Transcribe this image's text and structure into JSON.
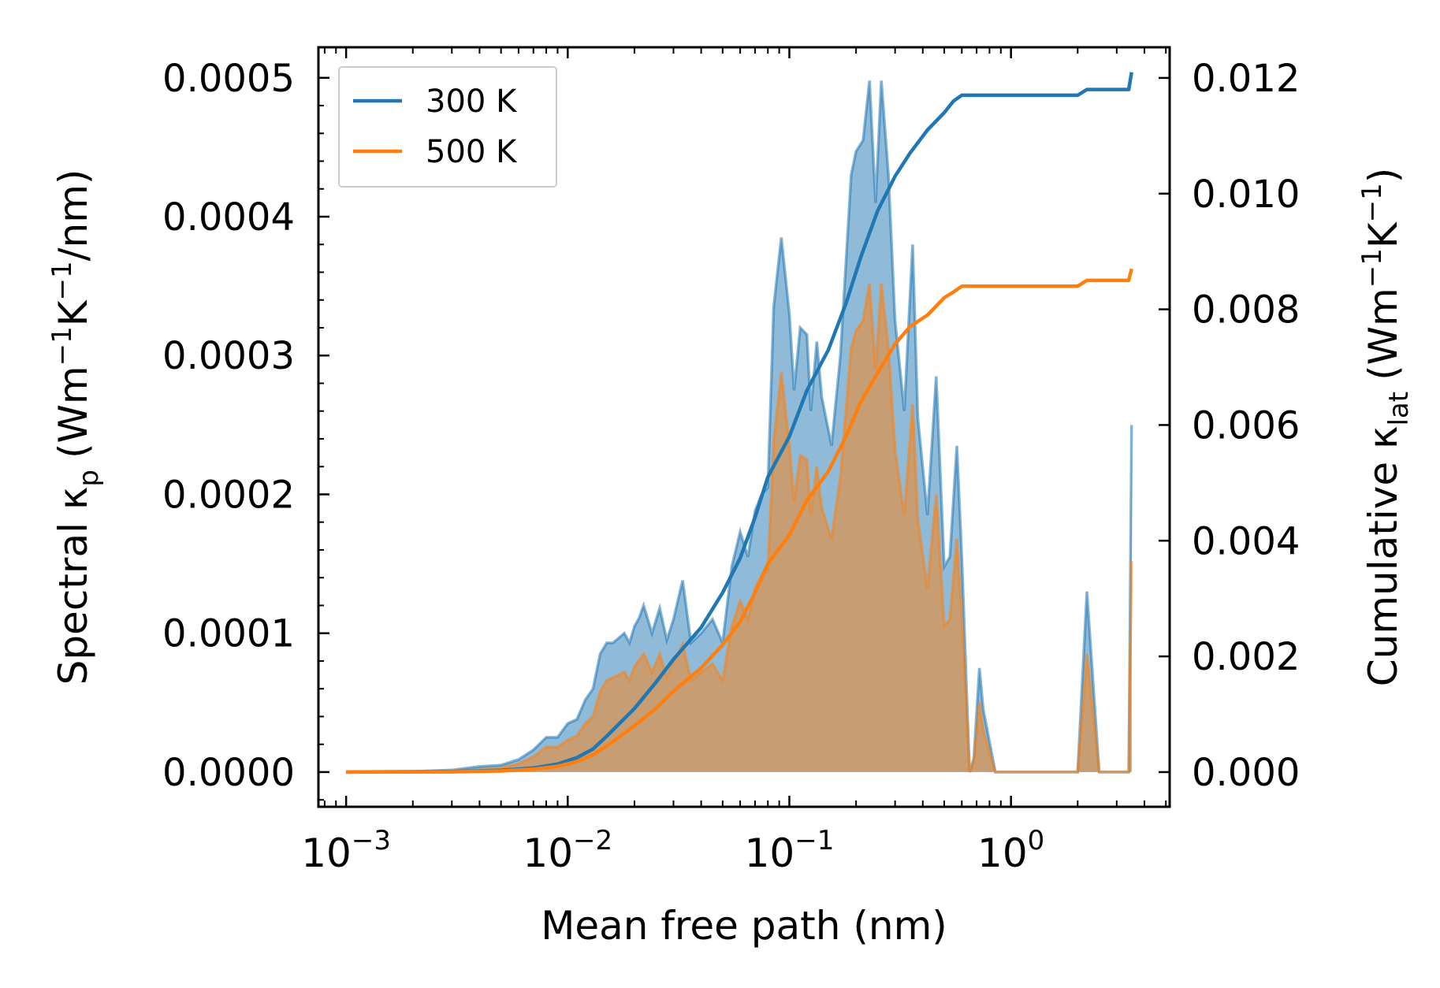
{
  "chart_data": {
    "type": "area",
    "xlabel": "Mean free path (nm)",
    "ylabel_left": "Spectral κ",
    "ylabel_left_sub": "p",
    "ylabel_left_units": "(Wm",
    "ylabel_right": "Cumulative κ",
    "ylabel_right_sub": "lat",
    "ylabel_right_units": "(Wm",
    "xscale": "log",
    "xlim": [
      0.00075,
      5.2
    ],
    "ylim_left": [
      -2.5e-05,
      0.000522
    ],
    "ylim_right": [
      -0.0006,
      0.01253
    ],
    "x_ticks": [
      {
        "value": 0.001,
        "base": "10",
        "exp": "−3"
      },
      {
        "value": 0.01,
        "base": "10",
        "exp": "−2"
      },
      {
        "value": 0.1,
        "base": "10",
        "exp": "−1"
      },
      {
        "value": 1,
        "base": "10",
        "exp": "0"
      }
    ],
    "y_ticks_left": [
      "0.0000",
      "0.0001",
      "0.0002",
      "0.0003",
      "0.0004",
      "0.0005"
    ],
    "y_ticks_left_values": [
      0,
      0.0001,
      0.0002,
      0.0003,
      0.0004,
      0.0005
    ],
    "y_ticks_right": [
      "0.000",
      "0.002",
      "0.004",
      "0.006",
      "0.008",
      "0.010",
      "0.012"
    ],
    "y_ticks_right_values": [
      0,
      0.002,
      0.004,
      0.006,
      0.008,
      0.01,
      0.012
    ],
    "legend": {
      "position": "top-left",
      "entries": [
        "300 K",
        "500 K"
      ]
    },
    "colors": {
      "series_300": "#1f77b4",
      "series_500": "#ff7f0e"
    },
    "spectral_series": [
      {
        "name": "300 K",
        "axis": "left",
        "points": [
          [
            0.001,
            0
          ],
          [
            0.002,
            4e-07
          ],
          [
            0.003,
            1.5e-06
          ],
          [
            0.004,
            4e-06
          ],
          [
            0.005,
            5e-06
          ],
          [
            0.006,
            9e-06
          ],
          [
            0.007,
            1.6e-05
          ],
          [
            0.008,
            2.5e-05
          ],
          [
            0.009,
            2.5e-05
          ],
          [
            0.01,
            3.5e-05
          ],
          [
            0.011,
            3.8e-05
          ],
          [
            0.012,
            5.2e-05
          ],
          [
            0.013,
            6e-05
          ],
          [
            0.014,
            8.5e-05
          ],
          [
            0.015,
            9.3e-05
          ],
          [
            0.016,
            9.3e-05
          ],
          [
            0.018,
            0.0001
          ],
          [
            0.019,
            9.3e-05
          ],
          [
            0.02,
            0.000105
          ],
          [
            0.021,
            0.000111
          ],
          [
            0.022,
            0.00012
          ],
          [
            0.024,
            0.0001
          ],
          [
            0.026,
            0.000118
          ],
          [
            0.028,
            9.5e-05
          ],
          [
            0.03,
            0.00011
          ],
          [
            0.033,
            0.000138
          ],
          [
            0.036,
            9.3e-05
          ],
          [
            0.04,
            0.0001
          ],
          [
            0.045,
            0.00011
          ],
          [
            0.05,
            9.3e-05
          ],
          [
            0.055,
            0.000148
          ],
          [
            0.06,
            0.000173
          ],
          [
            0.065,
            0.000155
          ],
          [
            0.07,
            0.000188
          ],
          [
            0.075,
            0.0002
          ],
          [
            0.08,
            0.000205
          ],
          [
            0.085,
            0.000335
          ],
          [
            0.092,
            0.000385
          ],
          [
            0.1,
            0.00033
          ],
          [
            0.105,
            0.000275
          ],
          [
            0.112,
            0.00032
          ],
          [
            0.12,
            0.000315
          ],
          [
            0.125,
            0.00026
          ],
          [
            0.133,
            0.00031
          ],
          [
            0.14,
            0.00027
          ],
          [
            0.155,
            0.000235
          ],
          [
            0.17,
            0.0003
          ],
          [
            0.19,
            0.00043
          ],
          [
            0.2,
            0.000447
          ],
          [
            0.215,
            0.000455
          ],
          [
            0.23,
            0.000498
          ],
          [
            0.245,
            0.00041
          ],
          [
            0.26,
            0.000498
          ],
          [
            0.28,
            0.00043
          ],
          [
            0.3,
            0.000325
          ],
          [
            0.33,
            0.00026
          ],
          [
            0.36,
            0.00038
          ],
          [
            0.38,
            0.000255
          ],
          [
            0.42,
            0.000185
          ],
          [
            0.46,
            0.000285
          ],
          [
            0.5,
            0.000148
          ],
          [
            0.53,
            0.000155
          ],
          [
            0.57,
            0.000235
          ],
          [
            0.6,
            0.000155
          ],
          [
            0.65,
            0
          ],
          [
            0.68,
            1e-05
          ],
          [
            0.72,
            7.5e-05
          ],
          [
            0.75,
            4.5e-05
          ],
          [
            0.85,
            0
          ],
          [
            1.0,
            0
          ],
          [
            1.5,
            0
          ],
          [
            2.0,
            0
          ],
          [
            2.2,
            0.00013
          ],
          [
            2.5,
            0
          ],
          [
            3.0,
            0
          ],
          [
            3.4,
            0
          ],
          [
            3.5,
            0.00025
          ]
        ]
      },
      {
        "name": "500 K",
        "axis": "left",
        "points": [
          [
            0.001,
            0
          ],
          [
            0.002,
            2e-07
          ],
          [
            0.003,
            8e-07
          ],
          [
            0.004,
            2e-06
          ],
          [
            0.005,
            3e-06
          ],
          [
            0.006,
            6e-06
          ],
          [
            0.007,
            1.1e-05
          ],
          [
            0.008,
            1.8e-05
          ],
          [
            0.009,
            1.8e-05
          ],
          [
            0.01,
            2.3e-05
          ],
          [
            0.011,
            2.6e-05
          ],
          [
            0.012,
            3.5e-05
          ],
          [
            0.013,
            4e-05
          ],
          [
            0.014,
            5.8e-05
          ],
          [
            0.015,
            6.6e-05
          ],
          [
            0.016,
            6.8e-05
          ],
          [
            0.018,
            7.2e-05
          ],
          [
            0.019,
            6.6e-05
          ],
          [
            0.02,
            7.6e-05
          ],
          [
            0.022,
            8.5e-05
          ],
          [
            0.024,
            7.2e-05
          ],
          [
            0.026,
            8.5e-05
          ],
          [
            0.028,
            6.8e-05
          ],
          [
            0.03,
            8e-05
          ],
          [
            0.033,
            9.2e-05
          ],
          [
            0.036,
            6.6e-05
          ],
          [
            0.04,
            7.2e-05
          ],
          [
            0.045,
            7.8e-05
          ],
          [
            0.05,
            6.6e-05
          ],
          [
            0.055,
            0.000105
          ],
          [
            0.06,
            0.000123
          ],
          [
            0.065,
            0.00011
          ],
          [
            0.07,
            0.000132
          ],
          [
            0.075,
            0.000142
          ],
          [
            0.08,
            0.000145
          ],
          [
            0.085,
            0.000238
          ],
          [
            0.092,
            0.000288
          ],
          [
            0.1,
            0.000235
          ],
          [
            0.105,
            0.000195
          ],
          [
            0.112,
            0.000228
          ],
          [
            0.12,
            0.000225
          ],
          [
            0.125,
            0.000185
          ],
          [
            0.133,
            0.00022
          ],
          [
            0.14,
            0.00019
          ],
          [
            0.155,
            0.000168
          ],
          [
            0.17,
            0.000213
          ],
          [
            0.19,
            0.000305
          ],
          [
            0.2,
            0.000318
          ],
          [
            0.215,
            0.000325
          ],
          [
            0.23,
            0.000352
          ],
          [
            0.245,
            0.00029
          ],
          [
            0.26,
            0.000352
          ],
          [
            0.28,
            0.000305
          ],
          [
            0.3,
            0.000232
          ],
          [
            0.33,
            0.000185
          ],
          [
            0.36,
            0.000265
          ],
          [
            0.38,
            0.000182
          ],
          [
            0.42,
            0.000132
          ],
          [
            0.46,
            0.0002
          ],
          [
            0.5,
            0.000105
          ],
          [
            0.53,
            0.00011
          ],
          [
            0.57,
            0.000168
          ],
          [
            0.6,
            0.000112
          ],
          [
            0.65,
            0
          ],
          [
            0.68,
            7e-06
          ],
          [
            0.72,
            5e-05
          ],
          [
            0.75,
            3e-05
          ],
          [
            0.85,
            0
          ],
          [
            1.0,
            0
          ],
          [
            1.5,
            0
          ],
          [
            2.0,
            0
          ],
          [
            2.2,
            8.5e-05
          ],
          [
            2.5,
            0
          ],
          [
            3.0,
            0
          ],
          [
            3.4,
            0
          ],
          [
            3.5,
            0.000152
          ]
        ]
      }
    ],
    "cumulative_series": [
      {
        "name": "300 K",
        "axis": "right",
        "points": [
          [
            0.001,
            0
          ],
          [
            0.003,
            1e-05
          ],
          [
            0.005,
            3e-05
          ],
          [
            0.007,
            7e-05
          ],
          [
            0.009,
            0.00014
          ],
          [
            0.011,
            0.00025
          ],
          [
            0.013,
            0.0004
          ],
          [
            0.015,
            0.00062
          ],
          [
            0.02,
            0.0011
          ],
          [
            0.025,
            0.00155
          ],
          [
            0.03,
            0.00195
          ],
          [
            0.04,
            0.0025
          ],
          [
            0.05,
            0.0031
          ],
          [
            0.06,
            0.0037
          ],
          [
            0.07,
            0.0044
          ],
          [
            0.08,
            0.0051
          ],
          [
            0.1,
            0.0058
          ],
          [
            0.12,
            0.0066
          ],
          [
            0.15,
            0.0073
          ],
          [
            0.18,
            0.0081
          ],
          [
            0.21,
            0.0089
          ],
          [
            0.25,
            0.0097
          ],
          [
            0.3,
            0.0103
          ],
          [
            0.35,
            0.0107
          ],
          [
            0.42,
            0.0111
          ],
          [
            0.5,
            0.0114
          ],
          [
            0.55,
            0.0116
          ],
          [
            0.6,
            0.0117
          ],
          [
            0.7,
            0.0117
          ],
          [
            0.8,
            0.0117
          ],
          [
            1.0,
            0.0117
          ],
          [
            2.0,
            0.0117
          ],
          [
            2.2,
            0.0118
          ],
          [
            3.4,
            0.0118
          ],
          [
            3.5,
            0.0121
          ]
        ]
      },
      {
        "name": "500 K",
        "axis": "right",
        "points": [
          [
            0.001,
            0
          ],
          [
            0.003,
            5e-06
          ],
          [
            0.005,
            2e-05
          ],
          [
            0.007,
            5e-05
          ],
          [
            0.009,
            0.0001
          ],
          [
            0.011,
            0.00018
          ],
          [
            0.013,
            0.0003
          ],
          [
            0.015,
            0.00045
          ],
          [
            0.02,
            0.0008
          ],
          [
            0.025,
            0.0011
          ],
          [
            0.03,
            0.0014
          ],
          [
            0.04,
            0.0018
          ],
          [
            0.05,
            0.0022
          ],
          [
            0.06,
            0.0026
          ],
          [
            0.07,
            0.0031
          ],
          [
            0.08,
            0.0036
          ],
          [
            0.1,
            0.0041
          ],
          [
            0.12,
            0.0047
          ],
          [
            0.15,
            0.0052
          ],
          [
            0.18,
            0.0058
          ],
          [
            0.21,
            0.0064
          ],
          [
            0.25,
            0.0069
          ],
          [
            0.3,
            0.0074
          ],
          [
            0.35,
            0.0077
          ],
          [
            0.42,
            0.0079
          ],
          [
            0.5,
            0.0082
          ],
          [
            0.55,
            0.0083
          ],
          [
            0.6,
            0.0084
          ],
          [
            0.7,
            0.0084
          ],
          [
            0.8,
            0.0084
          ],
          [
            1.0,
            0.0084
          ],
          [
            2.0,
            0.0084
          ],
          [
            2.2,
            0.0085
          ],
          [
            3.4,
            0.0085
          ],
          [
            3.5,
            0.0087
          ]
        ]
      }
    ]
  }
}
